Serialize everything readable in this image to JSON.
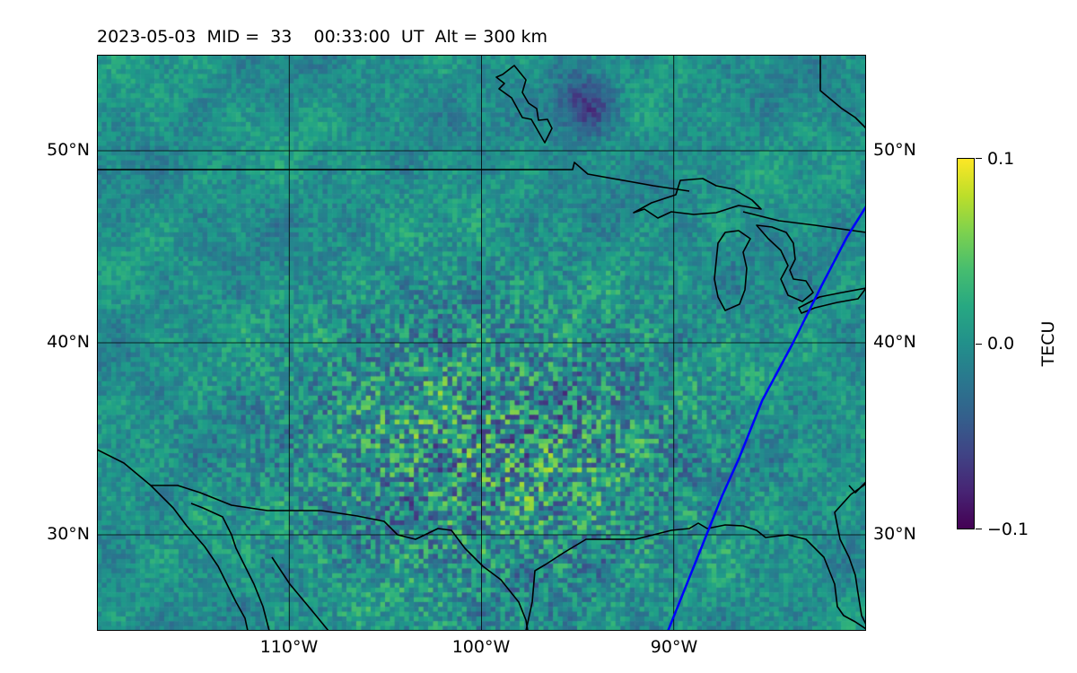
{
  "title": "2023-05-03  MID =  33    00:33:00  UT  Alt = 300 km",
  "map": {
    "lon_range": [
      -120,
      -80
    ],
    "lat_range": [
      25,
      55
    ],
    "lat_ticks": [
      {
        "value": 50,
        "label": "50°N"
      },
      {
        "value": 40,
        "label": "40°N"
      },
      {
        "value": 30,
        "label": "30°N"
      }
    ],
    "lon_ticks": [
      {
        "value": -110,
        "label": "110°W"
      },
      {
        "value": -100,
        "label": "100°W"
      },
      {
        "value": -90,
        "label": "90°W"
      }
    ],
    "gridlines": true,
    "coastline_color": "#000000",
    "track_color": "#0000ff",
    "track": [
      [
        -90.3,
        25
      ],
      [
        -89.5,
        27
      ],
      [
        -88.3,
        30
      ],
      [
        -87.5,
        32
      ],
      [
        -86.6,
        34
      ],
      [
        -85.4,
        37
      ],
      [
        -83.8,
        40
      ],
      [
        -82.3,
        43
      ],
      [
        -81.0,
        45.5
      ],
      [
        -80,
        47.1
      ]
    ],
    "colormap": "viridis"
  },
  "colorbar": {
    "label": "TECU",
    "ticks": [
      {
        "value": 0.1,
        "label": "0.1"
      },
      {
        "value": 0.0,
        "label": "0.0"
      },
      {
        "value": -0.1,
        "label": "−0.1"
      }
    ],
    "range": [
      -0.1,
      0.1
    ]
  }
}
